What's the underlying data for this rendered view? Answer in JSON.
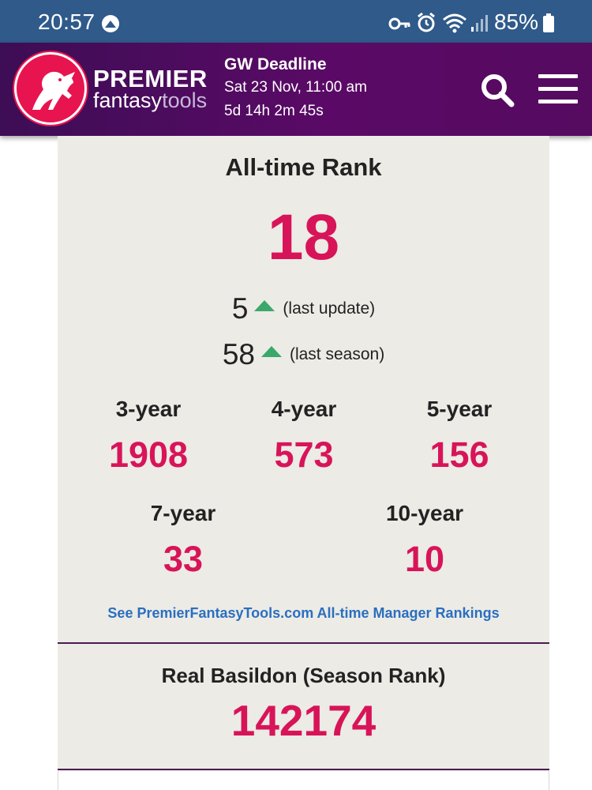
{
  "status_bar": {
    "time": "20:57",
    "battery": "85%",
    "icons": [
      "vpn-circle-icon",
      "key-icon",
      "alarm-icon",
      "wifi-icon",
      "signal-icon",
      "battery-icon"
    ]
  },
  "header": {
    "logo_word_1": "PREMIER",
    "logo_word_2a": "fantasy",
    "logo_word_2b": "tools",
    "deadline_title": "GW Deadline",
    "deadline_date": "Sat 23 Nov, 11:00 am",
    "deadline_countdown": "5d 14h 2m 45s",
    "icons": [
      "search-icon",
      "hamburger-menu-icon"
    ]
  },
  "alltime": {
    "title": "All-time Rank",
    "rank": "18",
    "changes": [
      {
        "value": "5",
        "label": "(last update)",
        "direction": "up"
      },
      {
        "value": "58",
        "label": "(last season)",
        "direction": "up"
      }
    ],
    "periods": [
      {
        "label": "3-year",
        "value": "1908"
      },
      {
        "label": "4-year",
        "value": "573"
      },
      {
        "label": "5-year",
        "value": "156"
      },
      {
        "label": "7-year",
        "value": "33"
      },
      {
        "label": "10-year",
        "value": "10"
      }
    ],
    "link": "See PremierFantasyTools.com All-time Manager Rankings"
  },
  "season": {
    "title": "Real Basildon (Season Rank)",
    "rank": "142174"
  },
  "colors": {
    "accent": "#d81459",
    "header": "#5a0a66",
    "status_bar": "#2f5a8a",
    "up_arrow": "#3aa86b",
    "link": "#2a6fbf"
  }
}
